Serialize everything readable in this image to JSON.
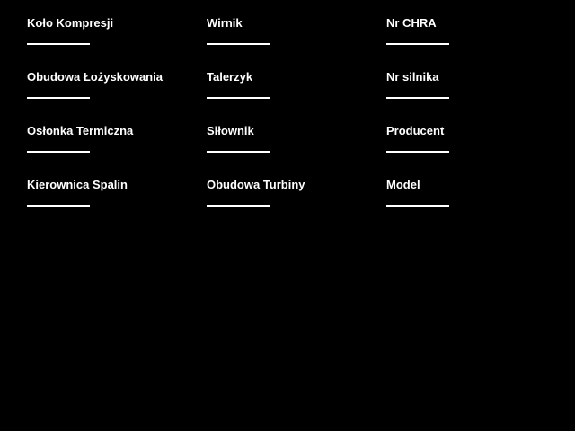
{
  "window": {
    "background_color": "#000000",
    "text_color": "#ffffff",
    "underline_color": "#ffffff"
  },
  "form": {
    "columns": [
      {
        "fields": [
          {
            "label": "Koło Kompresji"
          },
          {
            "label": "Obudowa Łożyskowania"
          },
          {
            "label": "Osłonka Termiczna"
          },
          {
            "label": "Kierownica Spalin"
          }
        ]
      },
      {
        "fields": [
          {
            "label": "Wirnik"
          },
          {
            "label": "Talerzyk"
          },
          {
            "label": "Siłownik"
          },
          {
            "label": "Obudowa Turbiny"
          }
        ]
      },
      {
        "fields": [
          {
            "label": "Nr CHRA"
          },
          {
            "label": "Nr silnika"
          },
          {
            "label": "Producent"
          },
          {
            "label": "Model"
          }
        ]
      }
    ]
  }
}
